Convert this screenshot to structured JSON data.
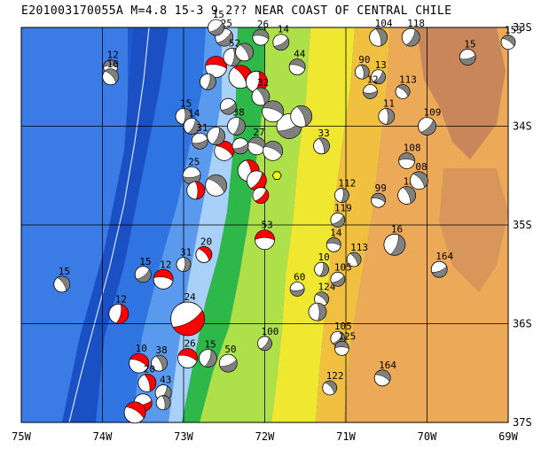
{
  "title": "E201003170055A M=4.8 15-3 9 2?? NEAR COAST OF CENTRAL CHILE",
  "map": {
    "lon_range": [
      -75,
      -69
    ],
    "lat_range": [
      -37,
      -33
    ],
    "x_ticks": [
      "75W",
      "74W",
      "73W",
      "72W",
      "71W",
      "70W",
      "69W"
    ],
    "y_ticks": [
      "33S",
      "34S",
      "35S",
      "36S",
      "37S"
    ],
    "colors": {
      "deep_ocean": "#1e5bd0",
      "ocean": "#2f74e0",
      "shelf": "#5a9aee",
      "shallow": "#a8d0f8",
      "lowland": "#2fb84a",
      "plain": "#aee04a",
      "hills": "#f0e830",
      "foothills": "#f2c040",
      "mountains": "#ecaa58",
      "high_mountains": "#c8865a",
      "compression": "#ff0000",
      "extension": "#808080",
      "highlight": "#ffff00"
    }
  },
  "events": [
    {
      "label": "12",
      "lon": -73.9,
      "lat": -33.4,
      "color": "gray",
      "size": 8
    },
    {
      "label": "10",
      "lon": -73.9,
      "lat": -33.5,
      "color": "gray",
      "size": 9
    },
    {
      "label": "15",
      "lon": -73.0,
      "lat": -33.9,
      "color": "gray",
      "size": 9
    },
    {
      "label": "25",
      "lon": -72.5,
      "lat": -33.1,
      "color": "gray",
      "size": 10
    },
    {
      "label": "",
      "lon": -72.6,
      "lat": -33.4,
      "color": "red",
      "size": 12
    },
    {
      "label": "",
      "lon": -72.3,
      "lat": -33.5,
      "color": "red",
      "size": 13
    },
    {
      "label": "",
      "lon": -72.1,
      "lat": -33.55,
      "color": "red",
      "size": 12
    },
    {
      "label": "14",
      "lon": -71.8,
      "lat": -33.15,
      "color": "gray",
      "size": 9
    },
    {
      "label": "44",
      "lon": -71.6,
      "lat": -33.4,
      "color": "gray",
      "size": 9
    },
    {
      "label": "32",
      "lon": -72.05,
      "lat": -33.7,
      "color": "gray",
      "size": 10
    },
    {
      "label": "38",
      "lon": -72.35,
      "lat": -34.0,
      "color": "gray",
      "size": 10
    },
    {
      "label": "",
      "lon": -71.7,
      "lat": -34.0,
      "color": "gray",
      "size": 14
    },
    {
      "label": "27",
      "lon": -72.1,
      "lat": -34.2,
      "color": "gray",
      "size": 10
    },
    {
      "label": "33",
      "lon": -71.3,
      "lat": -34.2,
      "color": "gray",
      "size": 9
    },
    {
      "label": "14",
      "lon": -72.9,
      "lat": -34.0,
      "color": "gray",
      "size": 9
    },
    {
      "label": "31",
      "lon": -72.8,
      "lat": -34.15,
      "color": "gray",
      "size": 9
    },
    {
      "label": "",
      "lon": -72.5,
      "lat": -34.25,
      "color": "red",
      "size": 11
    },
    {
      "label": "",
      "lon": -72.2,
      "lat": -34.45,
      "color": "red",
      "size": 12
    },
    {
      "label": "",
      "lon": -72.1,
      "lat": -34.55,
      "color": "red",
      "size": 11
    },
    {
      "label": "25",
      "lon": -72.9,
      "lat": -34.5,
      "color": "gray",
      "size": 10
    },
    {
      "label": "",
      "lon": -72.6,
      "lat": -34.6,
      "color": "gray",
      "size": 12
    },
    {
      "label": "",
      "lon": -72.85,
      "lat": -34.65,
      "color": "red",
      "size": 10
    },
    {
      "label": "",
      "lon": -72.05,
      "lat": -34.7,
      "color": "red",
      "size": 9
    },
    {
      "label": "53",
      "lon": -72.0,
      "lat": -35.15,
      "color": "red",
      "size": 11
    },
    {
      "label": "20",
      "lon": -72.75,
      "lat": -35.3,
      "color": "red",
      "size": 9
    },
    {
      "label": "31",
      "lon": -73.0,
      "lat": -35.4,
      "color": "gray",
      "size": 8
    },
    {
      "label": "15",
      "lon": -73.5,
      "lat": -35.5,
      "color": "gray",
      "size": 9
    },
    {
      "label": "12",
      "lon": -73.25,
      "lat": -35.55,
      "color": "red",
      "size": 11
    },
    {
      "label": "15",
      "lon": -74.5,
      "lat": -35.6,
      "color": "gray",
      "size": 9
    },
    {
      "label": "12",
      "lon": -73.8,
      "lat": -35.9,
      "color": "red",
      "size": 11
    },
    {
      "label": "24",
      "lon": -72.95,
      "lat": -35.95,
      "color": "red",
      "size": 19
    },
    {
      "label": "26",
      "lon": -72.95,
      "lat": -36.35,
      "color": "red",
      "size": 11
    },
    {
      "label": "38",
      "lon": -73.3,
      "lat": -36.4,
      "color": "gray",
      "size": 9
    },
    {
      "label": "15",
      "lon": -72.7,
      "lat": -36.35,
      "color": "gray",
      "size": 10
    },
    {
      "label": "50",
      "lon": -72.45,
      "lat": -36.4,
      "color": "gray",
      "size": 10
    },
    {
      "label": "10",
      "lon": -73.55,
      "lat": -36.4,
      "color": "red",
      "size": 11
    },
    {
      "label": "20",
      "lon": -73.45,
      "lat": -36.6,
      "color": "red",
      "size": 10
    },
    {
      "label": "43",
      "lon": -73.25,
      "lat": -36.7,
      "color": "gray",
      "size": 9
    },
    {
      "label": "",
      "lon": -73.5,
      "lat": -36.8,
      "color": "red",
      "size": 10
    },
    {
      "label": "",
      "lon": -73.6,
      "lat": -36.9,
      "color": "red",
      "size": 12
    },
    {
      "label": "",
      "lon": -73.25,
      "lat": -36.8,
      "color": "gray",
      "size": 8
    },
    {
      "label": "100",
      "lon": -72.0,
      "lat": -36.2,
      "color": "gray",
      "size": 8
    },
    {
      "label": "60",
      "lon": -71.6,
      "lat": -35.65,
      "color": "gray",
      "size": 8
    },
    {
      "label": "124",
      "lon": -71.3,
      "lat": -35.75,
      "color": "gray",
      "size": 8
    },
    {
      "label": "",
      "lon": -71.35,
      "lat": -35.88,
      "color": "gray",
      "size": 10
    },
    {
      "label": "105",
      "lon": -71.1,
      "lat": -36.15,
      "color": "gray",
      "size": 8
    },
    {
      "label": "125",
      "lon": -71.05,
      "lat": -36.25,
      "color": "gray",
      "size": 8
    },
    {
      "label": "122",
      "lon": -71.2,
      "lat": -36.65,
      "color": "gray",
      "size": 8
    },
    {
      "label": "112",
      "lon": -71.05,
      "lat": -34.7,
      "color": "gray",
      "size": 8
    },
    {
      "label": "119",
      "lon": -71.1,
      "lat": -34.95,
      "color": "gray",
      "size": 8
    },
    {
      "label": "14",
      "lon": -71.15,
      "lat": -35.2,
      "color": "gray",
      "size": 8
    },
    {
      "label": "113",
      "lon": -70.9,
      "lat": -35.35,
      "color": "gray",
      "size": 8
    },
    {
      "label": "10",
      "lon": -71.3,
      "lat": -35.45,
      "color": "gray",
      "size": 8
    },
    {
      "label": "105",
      "lon": -71.1,
      "lat": -35.55,
      "color": "gray",
      "size": 8
    },
    {
      "label": "99",
      "lon": -70.6,
      "lat": -34.75,
      "color": "gray",
      "size": 8
    },
    {
      "label": "15",
      "lon": -70.25,
      "lat": -34.7,
      "color": "gray",
      "size": 10
    },
    {
      "label": "16",
      "lon": -70.4,
      "lat": -35.2,
      "color": "gray",
      "size": 12
    },
    {
      "label": "164",
      "lon": -69.85,
      "lat": -35.45,
      "color": "gray",
      "size": 9
    },
    {
      "label": "164",
      "lon": -70.55,
      "lat": -36.55,
      "color": "gray",
      "size": 9
    },
    {
      "label": "104",
      "lon": -70.6,
      "lat": -33.1,
      "color": "gray",
      "size": 10
    },
    {
      "label": "118",
      "lon": -70.2,
      "lat": -33.1,
      "color": "gray",
      "size": 10
    },
    {
      "label": "15",
      "lon": -69.5,
      "lat": -33.3,
      "color": "gray",
      "size": 9
    },
    {
      "label": "153",
      "lon": -69.0,
      "lat": -33.15,
      "color": "gray",
      "size": 8
    },
    {
      "label": "90",
      "lon": -70.8,
      "lat": -33.45,
      "color": "gray",
      "size": 8
    },
    {
      "label": "13",
      "lon": -70.6,
      "lat": -33.5,
      "color": "gray",
      "size": 8
    },
    {
      "label": "12",
      "lon": -70.7,
      "lat": -33.65,
      "color": "gray",
      "size": 8
    },
    {
      "label": "113",
      "lon": -70.3,
      "lat": -33.65,
      "color": "gray",
      "size": 8
    },
    {
      "label": "11",
      "lon": -70.5,
      "lat": -33.9,
      "color": "gray",
      "size": 9
    },
    {
      "label": "109",
      "lon": -70.0,
      "lat": -34.0,
      "color": "gray",
      "size": 10
    },
    {
      "label": "108",
      "lon": -70.25,
      "lat": -34.35,
      "color": "gray",
      "size": 9
    },
    {
      "label": "08",
      "lon": -70.1,
      "lat": -34.55,
      "color": "gray",
      "size": 10
    },
    {
      "label": "52",
      "lon": -72.4,
      "lat": -33.3,
      "color": "gray",
      "size": 10
    },
    {
      "label": "15",
      "lon": -72.6,
      "lat": -33.0,
      "color": "gray",
      "size": 9
    },
    {
      "label": "26",
      "lon": -72.05,
      "lat": -33.1,
      "color": "gray",
      "size": 9
    },
    {
      "label": "",
      "lon": -72.25,
      "lat": -33.25,
      "color": "gray",
      "size": 10
    },
    {
      "label": "",
      "lon": -72.7,
      "lat": -33.55,
      "color": "gray",
      "size": 9
    },
    {
      "label": "",
      "lon": -72.45,
      "lat": -33.8,
      "color": "gray",
      "size": 9
    },
    {
      "label": "",
      "lon": -71.9,
      "lat": -33.85,
      "color": "gray",
      "size": 12
    },
    {
      "label": "",
      "lon": -71.55,
      "lat": -33.9,
      "color": "gray",
      "size": 12
    },
    {
      "label": "",
      "lon": -72.6,
      "lat": -34.1,
      "color": "gray",
      "size": 10
    },
    {
      "label": "",
      "lon": -72.3,
      "lat": -34.2,
      "color": "gray",
      "size": 9
    },
    {
      "label": "",
      "lon": -71.9,
      "lat": -34.25,
      "color": "gray",
      "size": 11
    }
  ],
  "highlight_event": {
    "lon": -71.85,
    "lat": -34.5
  }
}
